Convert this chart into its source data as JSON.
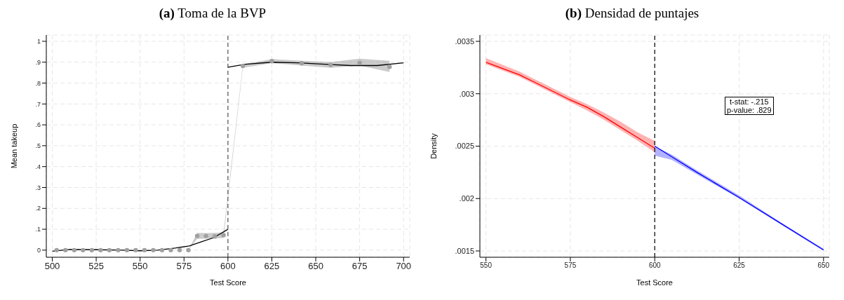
{
  "chart_data": [
    {
      "type": "line",
      "title": "(a) Toma de la BVP",
      "xlabel": "Test Score",
      "ylabel": "Mean takeup",
      "xlim": [
        496.6,
        703.5
      ],
      "xticks": [
        500,
        525,
        550,
        575,
        600,
        625,
        650,
        675,
        700
      ],
      "ylim": [
        -0.034,
        1.03
      ],
      "yticks": [
        0,
        {
          "value": 0.1,
          "label": ".1"
        },
        {
          "value": 0.2,
          "label": ".2"
        },
        {
          "value": 0.3,
          "label": ".3"
        },
        {
          "value": 0.4,
          "label": ".4"
        },
        {
          "value": 0.5,
          "label": ".5"
        },
        {
          "value": 0.6,
          "label": ".6"
        },
        {
          "value": 0.7,
          "label": ".7"
        },
        {
          "value": 0.8,
          "label": ".8"
        },
        {
          "value": 0.9,
          "label": ".9"
        },
        1
      ],
      "grid": true,
      "ref_lines": [
        {
          "axis": "x",
          "value": 600,
          "label": null,
          "color": "#555555",
          "line_style": "dashed"
        }
      ],
      "series": [
        {
          "type": "scatter",
          "color": "#a0a0a0",
          "marker": "circle",
          "x": [
            502.5,
            507.5,
            512.5,
            517.5,
            522.5,
            527.5,
            532.5,
            537.5,
            542.5,
            547.5,
            552.5,
            557.5,
            562.5,
            567.5,
            572.5,
            577.5,
            582.5,
            587.5,
            592.5,
            597.5,
            608.5,
            625,
            642,
            658.5,
            675,
            692
          ],
          "values": [
            0,
            0,
            0,
            0,
            0,
            0,
            0,
            0,
            0,
            0,
            0,
            0,
            0,
            0,
            0,
            0,
            0.068,
            0.068,
            0.066,
            0.072,
            0.882,
            0.905,
            0.895,
            0.887,
            0.897,
            0.878
          ],
          "lower": [
            null,
            null,
            null,
            null,
            null,
            null,
            null,
            null,
            null,
            null,
            null,
            null,
            null,
            null,
            null,
            0,
            0.054,
            0.055,
            0.056,
            0.058,
            0.873,
            0.896,
            0.884,
            0.873,
            0.884,
            0.853
          ],
          "upper": [
            null,
            null,
            null,
            null,
            null,
            null,
            null,
            null,
            null,
            null,
            null,
            null,
            null,
            null,
            null,
            0,
            0.083,
            0.082,
            0.083,
            0.085,
            0.889,
            0.915,
            0.907,
            0.901,
            0.917,
            0.907
          ]
        },
        {
          "type": "line",
          "color": "#000000",
          "marker": "none",
          "x": [
            500,
            510,
            525,
            540,
            550,
            560,
            570,
            578,
            585,
            592,
            600
          ],
          "values": [
            -0.005,
            0.003,
            0.002,
            0,
            -0.003,
            0,
            0.01,
            0.02,
            0.04,
            0.06,
            0.1
          ]
        },
        {
          "type": "line",
          "color": "#000000",
          "marker": "none",
          "x": [
            600,
            610,
            625,
            640,
            655,
            670,
            685,
            700
          ],
          "values": [
            0.876,
            0.89,
            0.9,
            0.897,
            0.89,
            0.884,
            0.884,
            0.897
          ]
        }
      ]
    },
    {
      "type": "line",
      "title": "(b) Densidad de puntajes",
      "xlabel": "Test Score",
      "ylabel": "Density",
      "xlim": [
        548.2,
        651.7
      ],
      "xticks": [
        550,
        575,
        600,
        625,
        650
      ],
      "ylim": [
        0.00144,
        0.00356
      ],
      "yticks": [
        {
          "value": 0.0015,
          "label": ".0015"
        },
        {
          "value": 0.002,
          "label": ".002"
        },
        {
          "value": 0.0025,
          "label": ".0025"
        },
        {
          "value": 0.003,
          "label": ".003"
        },
        {
          "value": 0.0035,
          "label": ".0035"
        }
      ],
      "grid": true,
      "ref_lines": [
        {
          "axis": "x",
          "value": 600,
          "label": null,
          "color": "#000000",
          "line_style": "dashed"
        }
      ],
      "annotations": [
        "t-stat: -.215",
        "p-value: .829"
      ],
      "series": [
        {
          "type": "line",
          "color": "#ff0000",
          "marker": "none",
          "x": [
            550,
            560,
            565,
            570,
            575,
            580,
            585,
            590,
            595,
            600
          ],
          "values": [
            0.0033,
            0.00318,
            0.0031,
            0.00302,
            0.00294,
            0.00287,
            0.00278,
            0.00268,
            0.00258,
            0.00248
          ],
          "lower": [
            0.00328,
            0.00316,
            0.00308,
            0.003,
            0.00292,
            0.00284,
            0.00275,
            0.00265,
            0.00255,
            0.00244
          ],
          "upper": [
            0.00334,
            0.00321,
            0.00313,
            0.00305,
            0.00297,
            0.0029,
            0.00282,
            0.00273,
            0.00263,
            0.00255
          ]
        },
        {
          "type": "line",
          "color": "#0000ff",
          "marker": "none",
          "x": [
            600,
            605,
            612.5,
            625,
            637.5,
            650
          ],
          "values": [
            0.0025,
            0.0024,
            0.00225,
            0.00201,
            0.00176,
            0.00151
          ],
          "lower": [
            0.00241,
            0.00237,
            0.00223,
            0.002,
            0.00175,
            0.0015
          ],
          "upper": [
            0.0025,
            0.00242,
            0.00227,
            0.00203,
            0.00177,
            0.00152
          ]
        }
      ]
    }
  ]
}
